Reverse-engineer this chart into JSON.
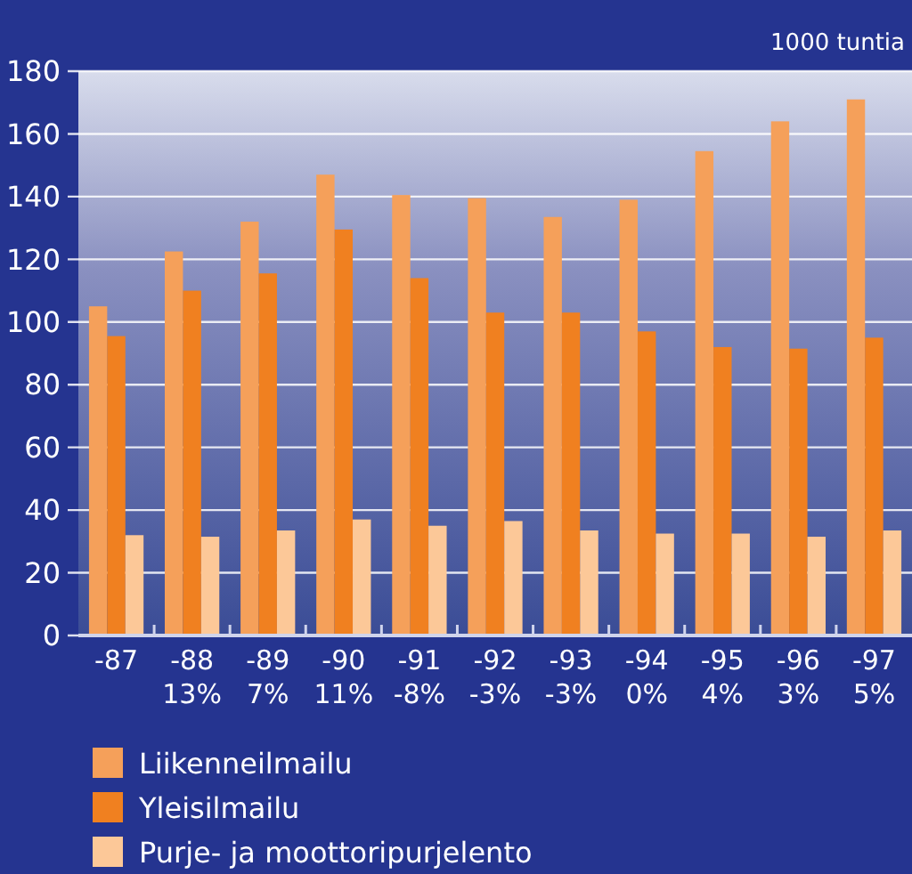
{
  "chart_data": {
    "type": "bar",
    "ylabel": "1000 tuntia",
    "categories": [
      "-87",
      "-88\n13%",
      "-89\n7%",
      "-90\n11%",
      "-91\n-8%",
      "-92\n-3%",
      "-93\n-3%",
      "-94\n0%",
      "-95\n4%",
      "-96\n3%",
      "-97\n5%"
    ],
    "series": [
      {
        "name": "Liikenneilmailu",
        "color": "#f5a05a",
        "values": [
          105,
          122.5,
          132,
          147,
          140.5,
          139.5,
          133.5,
          139,
          154.5,
          164,
          171
        ]
      },
      {
        "name": "Yleisilmailu",
        "color": "#f08020",
        "values": [
          95.5,
          110,
          115.5,
          129.5,
          114,
          103,
          103,
          97,
          92,
          91.5,
          95
        ]
      },
      {
        "name": "Purje- ja moottoripurjelento",
        "color": "#fcc898",
        "values": [
          32,
          31.5,
          33.5,
          37,
          35,
          36.5,
          33.5,
          32.5,
          32.5,
          31.5,
          33.5
        ]
      }
    ],
    "ylim": [
      0,
      180
    ],
    "yticks": [
      0,
      20,
      40,
      60,
      80,
      100,
      120,
      140,
      160,
      180
    ],
    "grid": "y",
    "legend": "bottom"
  }
}
